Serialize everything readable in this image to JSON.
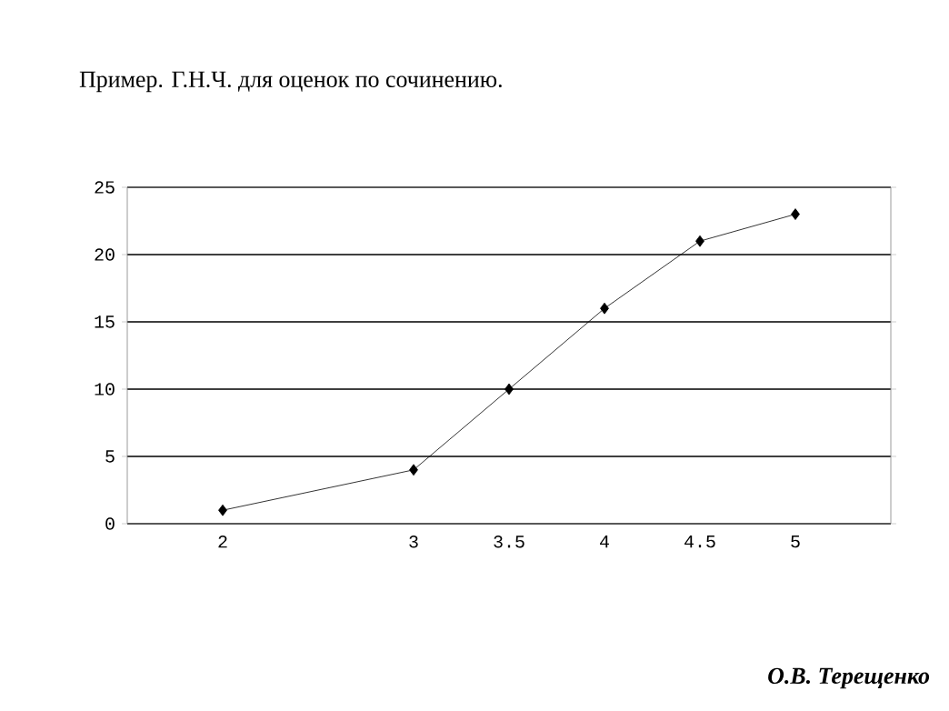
{
  "chart_data": {
    "type": "line",
    "title": "Пример. Г.Н.Ч. для оценок по сочинению.",
    "x": [
      2,
      3,
      3.5,
      4,
      4.5,
      5
    ],
    "series": [
      {
        "color": "#000000",
        "values": [
          1,
          4,
          10,
          16,
          21,
          23
        ]
      }
    ],
    "xlim": [
      1.5,
      5.5
    ],
    "ylim": [
      0,
      25
    ],
    "xticks": [
      2,
      3,
      3.5,
      4,
      4.5,
      5
    ],
    "yticks": [
      0,
      5,
      10,
      15,
      20,
      25
    ],
    "grid": "y",
    "marker": "diamond",
    "line_style": "solid",
    "annotations": [
      "О.В. Терещенко"
    ]
  }
}
